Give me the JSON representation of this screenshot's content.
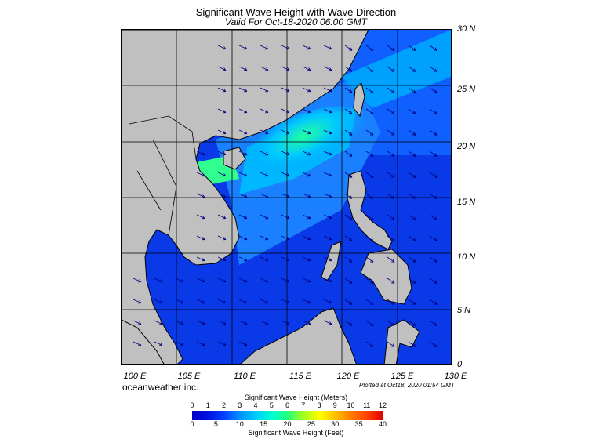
{
  "title": "Significant Wave Height with Wave Direction",
  "subtitle": "Valid For Oct-18-2020 06:00 GMT",
  "lat_labels": [
    "30 N",
    "25 N",
    "20 N",
    "15 N",
    "10 N",
    "5 N",
    "0"
  ],
  "lon_labels": [
    "100 E",
    "105 E",
    "110 E",
    "115 E",
    "120 E",
    "125 E",
    "130 E"
  ],
  "brand": "oceanweather inc.",
  "plotted": "Plotted at Oct18, 2020 01:54 GMT",
  "legend": {
    "meters_title": "Significant Wave Height (Meters)",
    "feet_title": "Significant Wave Height (Feet)",
    "meters_ticks": [
      "0",
      "1",
      "2",
      "3",
      "4",
      "5",
      "6",
      "7",
      "8",
      "9",
      "10",
      "11",
      "12"
    ],
    "feet_ticks": [
      "0",
      "5",
      "10",
      "15",
      "20",
      "25",
      "30",
      "35",
      "40"
    ]
  },
  "colors": {
    "land": "#c0c0c0",
    "sea_low": "#0033ee",
    "sea_mid": "#0090ff",
    "sea_high": "#00e0c0",
    "arrow": "#000080"
  }
}
